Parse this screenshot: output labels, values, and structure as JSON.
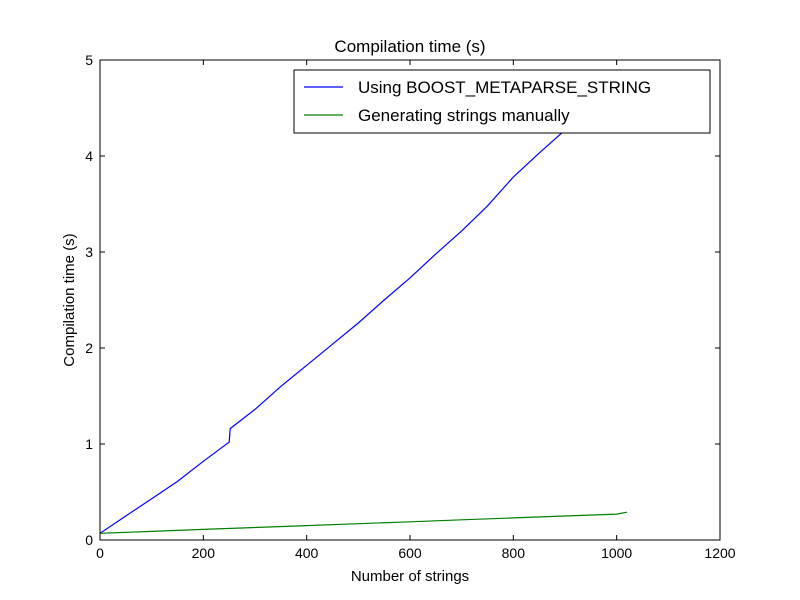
{
  "chart_data": {
    "type": "line",
    "title": "Compilation time (s)",
    "xlabel": "Number of strings",
    "ylabel": "Compilation time (s)",
    "xlim": [
      0,
      1200
    ],
    "ylim": [
      0,
      5
    ],
    "x_ticks": [
      0,
      200,
      400,
      600,
      800,
      1000,
      1200
    ],
    "y_ticks": [
      0,
      1,
      2,
      3,
      4,
      5
    ],
    "x_tick_labels": [
      "0",
      "200",
      "400",
      "600",
      "800",
      "1000",
      "1200"
    ],
    "y_tick_labels": [
      "0",
      "1",
      "2",
      "3",
      "4",
      "5"
    ],
    "grid": false,
    "legend_position": "top-right",
    "series": [
      {
        "name": "Using BOOST_METAPARSE_STRING",
        "color": "#0000ff",
        "x": [
          0,
          50,
          100,
          150,
          200,
          250,
          252,
          300,
          350,
          400,
          450,
          500,
          550,
          600,
          650,
          700,
          750,
          800,
          850,
          900,
          950,
          1000,
          1020
        ],
        "y": [
          0.07,
          0.25,
          0.43,
          0.61,
          0.82,
          1.02,
          1.16,
          1.36,
          1.6,
          1.82,
          2.04,
          2.26,
          2.5,
          2.73,
          2.98,
          3.22,
          3.48,
          3.78,
          4.03,
          4.27,
          4.52,
          4.78,
          4.88
        ]
      },
      {
        "name": "Generating strings manually",
        "color": "#008000",
        "x": [
          0,
          100,
          200,
          300,
          400,
          500,
          600,
          700,
          800,
          900,
          1000,
          1020
        ],
        "y": [
          0.07,
          0.09,
          0.11,
          0.13,
          0.15,
          0.17,
          0.19,
          0.21,
          0.23,
          0.25,
          0.27,
          0.29
        ]
      }
    ]
  }
}
